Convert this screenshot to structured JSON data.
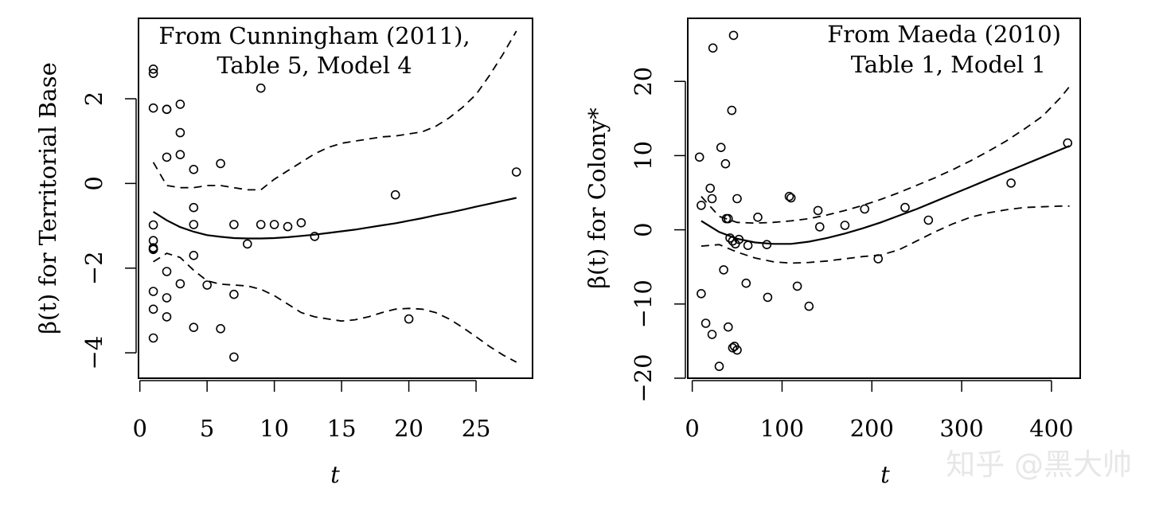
{
  "watermark": "知乎 @黑大帅",
  "chart_data": [
    {
      "type": "scatter",
      "panel": "left",
      "annotation": [
        "From Cunningham (2011),",
        "Table 5, Model 4"
      ],
      "xlabel": "t",
      "ylabel": "β(t) for Territorial Base",
      "xlim": [
        -0.1,
        29.2
      ],
      "ylim": [
        -4.6,
        3.9
      ],
      "xticks": [
        0,
        5,
        10,
        15,
        20,
        25
      ],
      "xticklabels": [
        "0",
        "5",
        "10",
        "15",
        "20",
        "25"
      ],
      "yticks": [
        -4,
        -2,
        0,
        2
      ],
      "yticklabels": [
        "−4",
        "−2",
        "0",
        "2"
      ],
      "points": {
        "x": [
          1,
          1,
          1,
          1,
          1,
          1,
          1,
          1,
          1,
          1,
          1,
          2,
          2,
          2,
          2,
          2,
          2,
          3,
          3,
          3,
          3,
          4,
          4,
          4,
          4,
          4,
          5,
          6,
          6,
          7,
          7,
          7,
          8,
          9,
          9,
          10,
          11,
          12,
          13,
          19,
          20,
          28
        ],
        "y": [
          2.7,
          2.6,
          1.78,
          -0.98,
          -1.35,
          -1.52,
          -1.56,
          -2.55,
          -2.97,
          -3.65,
          -1.55,
          1.75,
          0.62,
          -2.08,
          -2.7,
          -3.15,
          1.75,
          1.87,
          1.2,
          0.68,
          -2.37,
          0.33,
          -0.57,
          -0.97,
          -1.7,
          -3.4,
          -2.4,
          0.47,
          -3.43,
          -0.97,
          -2.62,
          -4.1,
          -1.43,
          2.25,
          -0.97,
          -0.97,
          -1.02,
          -0.93,
          -1.25,
          -0.27,
          -3.2,
          0.27
        ]
      },
      "fit": {
        "x": [
          1,
          2,
          3,
          4,
          5,
          6,
          7,
          8,
          9,
          10,
          11,
          12,
          13,
          14,
          15,
          16,
          17,
          18,
          19,
          20,
          21,
          22,
          23,
          24,
          25,
          26,
          27,
          28
        ],
        "y": [
          -0.67,
          -0.87,
          -1.03,
          -1.14,
          -1.22,
          -1.26,
          -1.29,
          -1.3,
          -1.3,
          -1.29,
          -1.27,
          -1.24,
          -1.21,
          -1.17,
          -1.13,
          -1.09,
          -1.04,
          -0.99,
          -0.94,
          -0.88,
          -0.82,
          -0.75,
          -0.69,
          -0.62,
          -0.55,
          -0.48,
          -0.41,
          -0.34
        ]
      },
      "upper_band": {
        "x": [
          1,
          2,
          3,
          4,
          5,
          6,
          7,
          8,
          9,
          10,
          11,
          12,
          13,
          14,
          15,
          16,
          17,
          18,
          19,
          20,
          21,
          22,
          23,
          24,
          25,
          26,
          27,
          28
        ],
        "y": [
          0.5,
          -0.05,
          -0.1,
          -0.1,
          -0.05,
          -0.05,
          -0.1,
          -0.15,
          -0.15,
          0.1,
          0.3,
          0.5,
          0.7,
          0.85,
          0.95,
          1.0,
          1.05,
          1.1,
          1.12,
          1.17,
          1.22,
          1.35,
          1.55,
          1.8,
          2.1,
          2.55,
          3.05,
          3.6
        ]
      },
      "lower_band": {
        "x": [
          1,
          2,
          3,
          4,
          5,
          6,
          7,
          8,
          9,
          10,
          11,
          12,
          13,
          14,
          15,
          16,
          17,
          18,
          19,
          20,
          21,
          22,
          23,
          24,
          25,
          26,
          27,
          28
        ],
        "y": [
          -1.85,
          -1.65,
          -1.75,
          -2.05,
          -2.3,
          -2.38,
          -2.4,
          -2.42,
          -2.5,
          -2.65,
          -2.85,
          -3.05,
          -3.15,
          -3.2,
          -3.25,
          -3.22,
          -3.15,
          -3.05,
          -2.97,
          -2.95,
          -2.97,
          -3.05,
          -3.2,
          -3.4,
          -3.62,
          -3.85,
          -4.05,
          -4.22
        ]
      }
    },
    {
      "type": "scatter",
      "panel": "right",
      "annotation": [
        "From Maeda (2010)",
        "Table 1, Model 1"
      ],
      "xlabel": "t",
      "ylabel": "β(t) for Colony*",
      "xlim": [
        -5,
        432
      ],
      "ylim": [
        -20,
        28.5
      ],
      "xticks": [
        0,
        100,
        200,
        300,
        400
      ],
      "xticklabels": [
        "0",
        "100",
        "200",
        "300",
        "400"
      ],
      "yticks": [
        -20,
        -10,
        0,
        10,
        20
      ],
      "yticklabels": [
        "−20",
        "−10",
        "0",
        "10",
        "20"
      ],
      "points": {
        "x": [
          8,
          10,
          10,
          15,
          20,
          22,
          22,
          23,
          30,
          32,
          35,
          37,
          38,
          40,
          40,
          42,
          44,
          45,
          45,
          46,
          47,
          48,
          50,
          50,
          52,
          60,
          62,
          73,
          83,
          84,
          108,
          110,
          117,
          130,
          140,
          142,
          170,
          192,
          207,
          237,
          263,
          355,
          418
        ],
        "y": [
          9.8,
          3.3,
          -8.6,
          -12.6,
          5.6,
          4.2,
          -14.1,
          24.5,
          -18.4,
          11.1,
          -5.4,
          8.9,
          1.5,
          1.5,
          -13.1,
          -1.1,
          16.1,
          -1.5,
          -15.9,
          26.2,
          -15.7,
          -1.9,
          4.2,
          -16.2,
          -1.3,
          -7.2,
          -2.1,
          1.7,
          -2.0,
          -9.1,
          4.5,
          4.3,
          -7.6,
          -10.3,
          2.6,
          0.4,
          0.6,
          2.8,
          -3.9,
          3.0,
          1.3,
          6.3,
          11.7
        ]
      },
      "fit": {
        "x": [
          10,
          30,
          50,
          70,
          90,
          110,
          130,
          150,
          170,
          190,
          210,
          230,
          250,
          270,
          290,
          310,
          330,
          350,
          370,
          390,
          410,
          420
        ],
        "y": [
          1.2,
          -0.3,
          -1.2,
          -1.7,
          -1.9,
          -1.9,
          -1.6,
          -1.1,
          -0.5,
          0.2,
          1.0,
          1.9,
          2.8,
          3.8,
          4.8,
          5.8,
          6.8,
          7.8,
          8.8,
          9.8,
          10.8,
          11.3
        ]
      },
      "upper_band": {
        "x": [
          10,
          30,
          50,
          70,
          90,
          110,
          130,
          150,
          170,
          190,
          210,
          230,
          250,
          270,
          290,
          310,
          330,
          350,
          370,
          390,
          410,
          420
        ],
        "y": [
          4.5,
          1.8,
          1.0,
          0.9,
          1.0,
          1.2,
          1.5,
          2.0,
          2.6,
          3.3,
          4.1,
          5.0,
          6.0,
          7.0,
          8.1,
          9.3,
          10.6,
          12.0,
          13.6,
          15.3,
          17.8,
          19.3
        ]
      },
      "lower_band": {
        "x": [
          10,
          30,
          50,
          70,
          90,
          110,
          130,
          150,
          170,
          190,
          210,
          230,
          250,
          270,
          290,
          310,
          330,
          350,
          370,
          390,
          410,
          420
        ],
        "y": [
          -2.2,
          -2.0,
          -3.0,
          -3.8,
          -4.3,
          -4.5,
          -4.4,
          -4.2,
          -3.9,
          -3.6,
          -3.4,
          -2.7,
          -1.5,
          -0.3,
          0.8,
          1.7,
          2.3,
          2.7,
          3.0,
          3.1,
          3.2,
          3.2
        ]
      }
    }
  ]
}
